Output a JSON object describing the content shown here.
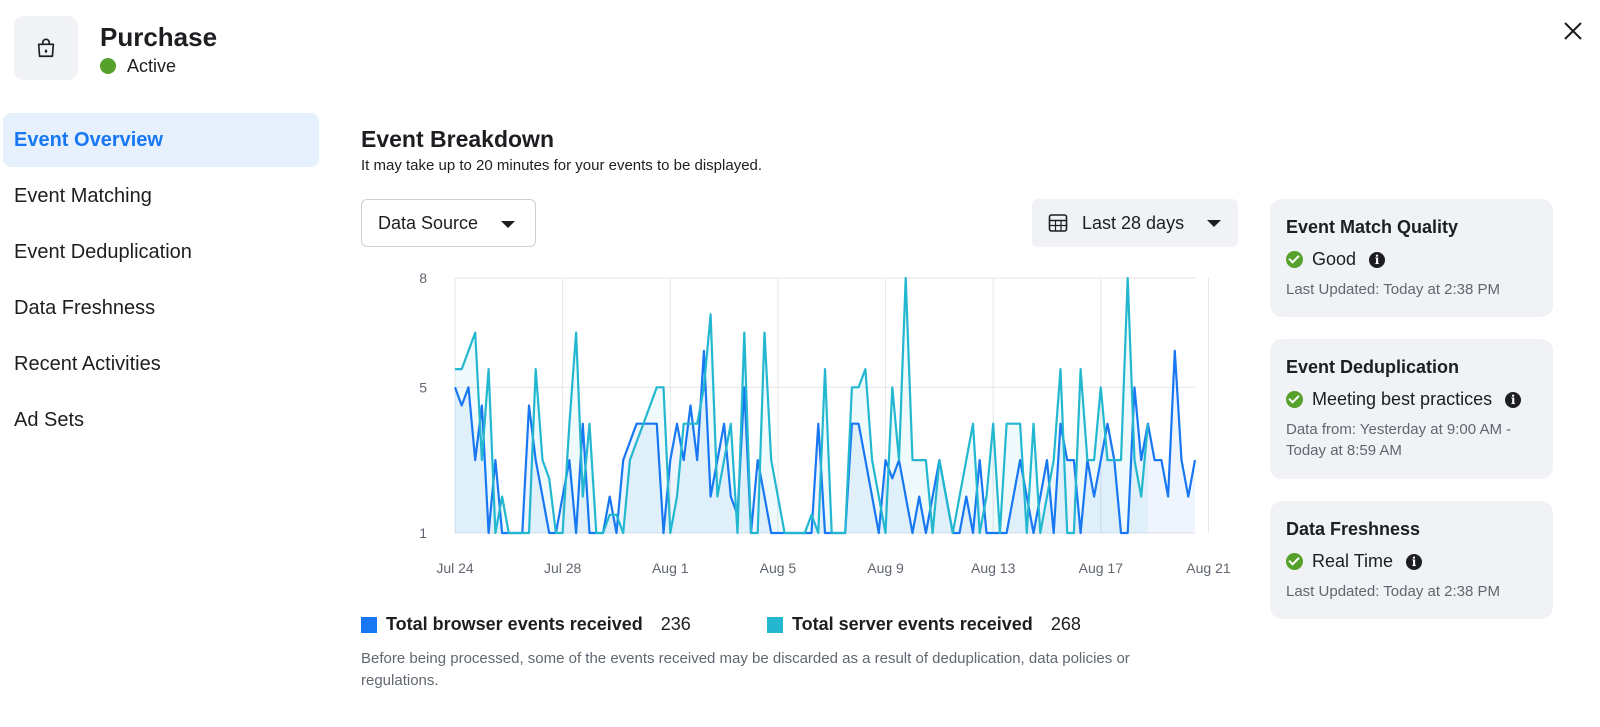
{
  "header": {
    "title": "Purchase",
    "status": "Active",
    "icon": "shopping-bag-icon",
    "status_color": "#56a12b"
  },
  "sidebar": {
    "items": [
      {
        "label": "Event Overview",
        "active": true
      },
      {
        "label": "Event Matching",
        "active": false
      },
      {
        "label": "Event Deduplication",
        "active": false
      },
      {
        "label": "Data Freshness",
        "active": false
      },
      {
        "label": "Recent Activities",
        "active": false
      },
      {
        "label": "Ad Sets",
        "active": false
      }
    ]
  },
  "main": {
    "title": "Event Breakdown",
    "subtitle": "It may take up to 20 minutes for your events to be displayed.",
    "data_source_label": "Data Source",
    "date_range_label": "Last 28 days",
    "footnote": "Before being processed, some of the events received may be discarded as a result of deduplication, data policies or regulations."
  },
  "legend": {
    "browser": {
      "label": "Total browser events received",
      "value": "236",
      "color": "#1877f2"
    },
    "server": {
      "label": "Total server events received",
      "value": "268",
      "color": "#23b7d0"
    }
  },
  "cards": {
    "match_quality": {
      "title": "Event Match Quality",
      "status": "Good",
      "meta": "Last Updated: Today at 2:38 PM"
    },
    "deduplication": {
      "title": "Event Deduplication",
      "status": "Meeting best practices",
      "meta_line1": "Data from: Yesterday at 9:00 AM -",
      "meta_line2": "Today at 8:59 AM"
    },
    "freshness": {
      "title": "Data Freshness",
      "status": "Real Time",
      "meta": "Last Updated: Today at 2:38 PM"
    }
  },
  "chart_data": {
    "type": "line",
    "title": "Event Breakdown",
    "xlabel": "",
    "ylabel": "",
    "ylim": [
      1,
      8
    ],
    "yticks": [
      1,
      5,
      8
    ],
    "xtick_labels": [
      "Jul 24",
      "Jul 28",
      "Aug 1",
      "Aug 5",
      "Aug 9",
      "Aug 13",
      "Aug 17",
      "Aug 21"
    ],
    "xtick_indices": [
      0,
      16,
      32,
      48,
      64,
      80,
      96,
      112
    ],
    "grid": true,
    "series": [
      {
        "name": "Total browser events received",
        "color": "#1877f2",
        "values": [
          5,
          4.5,
          5,
          3,
          4.5,
          1,
          3,
          1,
          1,
          1,
          1,
          4.5,
          3,
          2,
          1,
          1,
          2,
          3,
          1,
          4,
          1,
          1,
          1,
          2,
          1,
          3,
          3.5,
          4,
          4,
          4,
          4,
          1,
          3,
          4,
          3,
          4.5,
          3,
          6,
          2,
          3,
          4,
          2,
          1.5,
          5,
          1,
          3,
          2,
          1,
          1,
          1,
          1,
          1,
          1,
          1,
          4,
          1,
          1,
          1,
          1,
          4,
          4,
          3,
          2,
          1,
          3,
          2.5,
          3,
          2,
          1,
          2,
          1,
          2,
          3,
          2,
          1,
          1,
          2,
          1,
          3,
          1,
          1,
          1,
          1,
          2,
          3,
          2,
          1,
          2,
          3,
          1,
          4,
          3,
          3,
          1,
          3,
          2,
          3,
          4,
          3,
          1,
          1,
          5,
          3,
          4,
          3,
          3,
          2,
          6,
          3,
          2,
          3
        ]
      },
      {
        "name": "Total server events received",
        "color": "#23b7d0",
        "values": [
          5.5,
          5.5,
          6,
          6.5,
          3,
          5.5,
          1,
          2,
          1,
          1,
          1,
          1,
          5.5,
          3,
          2.5,
          1,
          1,
          4,
          6.5,
          2,
          4,
          1,
          1,
          1.5,
          1.5,
          1,
          3,
          3.5,
          4,
          4.5,
          5,
          5,
          1,
          2,
          4,
          4,
          4,
          5,
          7,
          2,
          3,
          4,
          1,
          6.5,
          1,
          1,
          6.5,
          3,
          2,
          1,
          1,
          1,
          1,
          1.5,
          1,
          5.5,
          1,
          1,
          1,
          5,
          5,
          5.5,
          3,
          2,
          1,
          5,
          3,
          8,
          3,
          3,
          3,
          1,
          3,
          2,
          1,
          2,
          3,
          4,
          1,
          2,
          4,
          1,
          4,
          4,
          4,
          1,
          4,
          1,
          2,
          3,
          5.5,
          1,
          1,
          5.5,
          3,
          3,
          5,
          3,
          3,
          3,
          8,
          3,
          2,
          4
        ]
      }
    ]
  }
}
